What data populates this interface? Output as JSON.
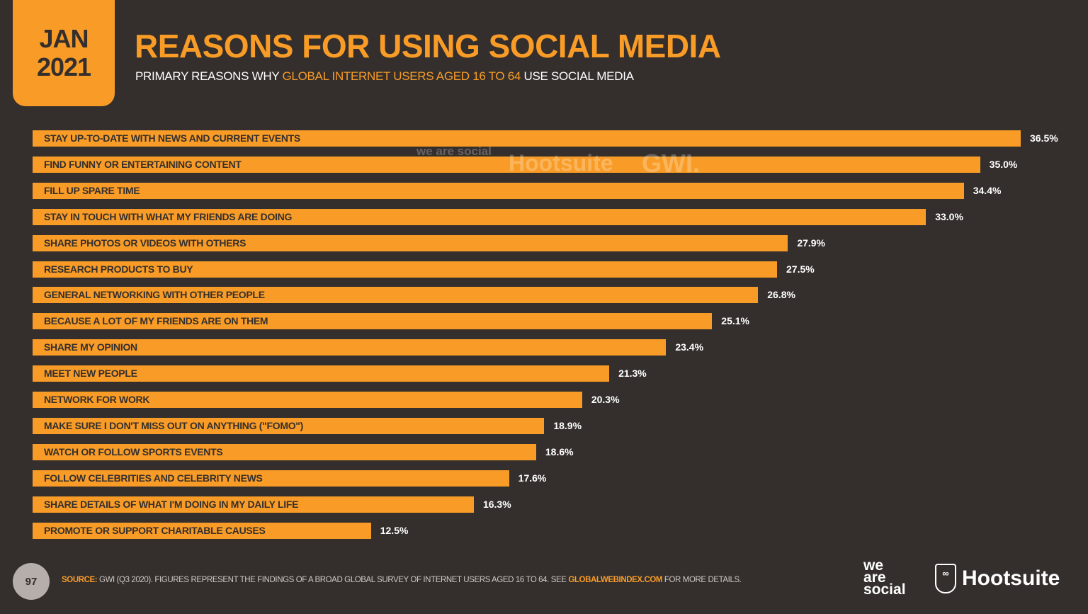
{
  "header": {
    "month": "JAN",
    "year": "2021",
    "title": "REASONS FOR USING SOCIAL MEDIA",
    "subtitle_pre": "PRIMARY REASONS WHY ",
    "subtitle_highlight": "GLOBAL INTERNET USERS AGED 16 TO 64",
    "subtitle_post": " USE SOCIAL MEDIA"
  },
  "watermark": {
    "we_are_social": "we are social",
    "hootsuite": "Hootsuite",
    "gwi": "GWI."
  },
  "colors": {
    "background": "#342f2d",
    "accent": "#f89c27"
  },
  "chart_data": {
    "type": "bar",
    "orientation": "horizontal",
    "categories": [
      "STAY UP-TO-DATE WITH NEWS AND CURRENT EVENTS",
      "FIND FUNNY OR ENTERTAINING CONTENT",
      "FILL UP SPARE TIME",
      "STAY IN TOUCH WITH WHAT MY FRIENDS ARE DOING",
      "SHARE PHOTOS OR VIDEOS WITH OTHERS",
      "RESEARCH PRODUCTS TO BUY",
      "GENERAL NETWORKING WITH OTHER PEOPLE",
      "BECAUSE A LOT OF MY FRIENDS ARE ON THEM",
      "SHARE MY OPINION",
      "MEET NEW PEOPLE",
      "NETWORK FOR WORK",
      "MAKE SURE I DON'T MISS OUT ON ANYTHING (\"FOMO\")",
      "WATCH OR FOLLOW SPORTS EVENTS",
      "FOLLOW CELEBRITIES AND CELEBRITY NEWS",
      "SHARE DETAILS OF WHAT I'M DOING IN MY DAILY LIFE",
      "PROMOTE OR SUPPORT CHARITABLE CAUSES"
    ],
    "values": [
      36.5,
      35.0,
      34.4,
      33.0,
      27.9,
      27.5,
      26.8,
      25.1,
      23.4,
      21.3,
      20.3,
      18.9,
      18.6,
      17.6,
      16.3,
      12.5
    ],
    "value_labels": [
      "36.5%",
      "35.0%",
      "34.4%",
      "33.0%",
      "27.9%",
      "27.5%",
      "26.8%",
      "25.1%",
      "23.4%",
      "21.3%",
      "20.3%",
      "18.9%",
      "18.6%",
      "17.6%",
      "16.3%",
      "12.5%"
    ],
    "unit": "%",
    "grid": false
  },
  "footer": {
    "page_number": "97",
    "source_label": "SOURCE:",
    "source_text": " GWI (Q3 2020). FIGURES REPRESENT THE FINDINGS OF A BROAD GLOBAL SURVEY OF INTERNET USERS AGED 16 TO 64. SEE ",
    "source_link": "GLOBALWEBINDEX.COM",
    "source_tail": " FOR MORE DETAILS.",
    "logo_we_are_social": [
      "we",
      "are",
      "social"
    ],
    "logo_hootsuite": "Hootsuite"
  }
}
